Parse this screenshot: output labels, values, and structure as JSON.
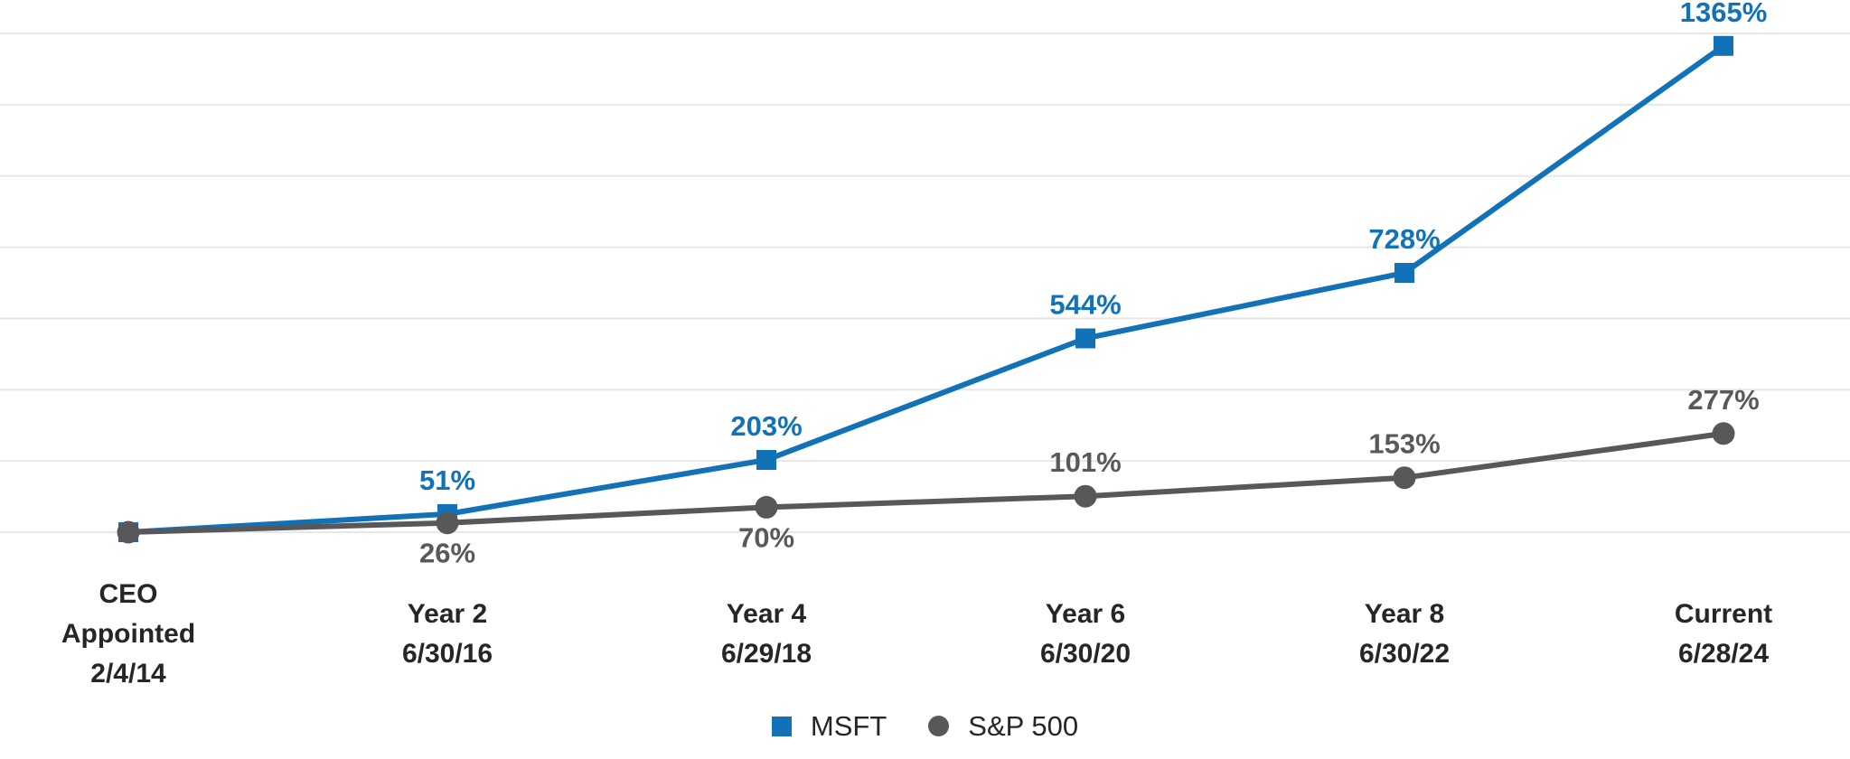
{
  "chart_data": {
    "type": "line",
    "categories": [
      [
        "CEO",
        "Appointed",
        "2/4/14"
      ],
      [
        "Year 2",
        "6/30/16"
      ],
      [
        "Year 4",
        "6/29/18"
      ],
      [
        "Year 6",
        "6/30/20"
      ],
      [
        "Year 8",
        "6/30/22"
      ],
      [
        "Current",
        "6/28/24"
      ]
    ],
    "series": [
      {
        "name": "MSFT",
        "color": "#1272B8",
        "label_color": "#1272B8",
        "marker": "square",
        "values": [
          0,
          51,
          203,
          544,
          728,
          1365
        ],
        "point_labels": [
          "",
          "51%",
          "203%",
          "544%",
          "728%",
          "1365%"
        ],
        "label_side": [
          "",
          "above",
          "above",
          "above",
          "above",
          "above"
        ]
      },
      {
        "name": "S&P 500",
        "color": "#58585B",
        "label_color": "#595959",
        "marker": "circle",
        "values": [
          0,
          26,
          70,
          101,
          153,
          277
        ],
        "point_labels": [
          "",
          "26%",
          "70%",
          "101%",
          "153%",
          "277%"
        ],
        "label_side": [
          "",
          "below",
          "below",
          "above",
          "above",
          "above"
        ]
      }
    ],
    "ylim": [
      0,
      1400
    ],
    "y_grid_step": 200,
    "grid": true,
    "gridline_color": "#E7E7E7",
    "axis_label_color": "#262626",
    "legend_position": "bottom",
    "xlabel": "",
    "ylabel": ""
  },
  "legend": {
    "items": [
      {
        "label": "MSFT",
        "color": "#1272B8",
        "marker": "square"
      },
      {
        "label": "S&P 500",
        "color": "#58585B",
        "marker": "circle"
      }
    ]
  }
}
